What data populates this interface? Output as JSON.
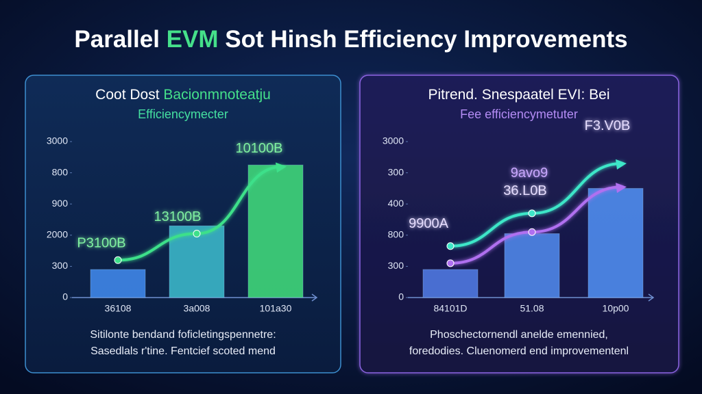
{
  "header": {
    "title_parts": [
      "Parallel ",
      "EVM",
      " Sot Hinsh Efficiency Improvements"
    ]
  },
  "chart_data": [
    {
      "type": "bar",
      "title": [
        "Coot Dost ",
        "Bacionmnoteatju"
      ],
      "subtitle": "Efficiencymecter",
      "categories": [
        "36108",
        "3a008",
        "101a30"
      ],
      "values": [
        0.9,
        2.3,
        4.25
      ],
      "colors": [
        "#3f86e8",
        "#3bb6c8",
        "#3fd67a"
      ],
      "series": [
        {
          "color": "#3ee08a",
          "values": [
            1.2,
            2.05,
            4.2
          ]
        }
      ],
      "annotations": [
        "P3100B",
        "13100B",
        "10100B"
      ],
      "ylim": [
        0,
        5
      ],
      "yticks": [
        0,
        {
          "value": 1,
          "label": "300"
        },
        {
          "value": 2,
          "label": "2000"
        },
        {
          "value": 3,
          "label": "900"
        },
        {
          "value": 4,
          "label": "800"
        },
        {
          "value": 5,
          "label": "3000"
        }
      ],
      "notes": [
        "Sitilonte bendand foficletingspennetre:",
        "Sasedlals r'tine. Fentcief scoted mend"
      ]
    },
    {
      "type": "bar",
      "title": [
        "Pitrend. Snespaatel EVI: Bei",
        ""
      ],
      "subtitle": "Fee efficiencymetuter",
      "categories": [
        "84101D",
        "51.08",
        "10p00"
      ],
      "values": [
        0.9,
        2.05,
        3.5
      ],
      "colors": [
        "#4f78e0",
        "#4f86e8",
        "#4f8cee"
      ],
      "series": [
        {
          "color": "#3ee6c8",
          "values": [
            1.65,
            2.7,
            4.3
          ]
        },
        {
          "color": "#b070f0",
          "values": [
            1.1,
            2.1,
            3.55
          ]
        }
      ],
      "annotations": [
        "9900A",
        "36.L0B",
        "9avo9",
        "F3.V0B"
      ],
      "ylim": [
        0,
        5
      ],
      "yticks": [
        0,
        {
          "value": 1,
          "label": "300"
        },
        {
          "value": 2,
          "label": "800"
        },
        {
          "value": 3,
          "label": "400"
        },
        {
          "value": 4,
          "label": "300"
        },
        {
          "value": 5,
          "label": "3000"
        }
      ],
      "notes": [
        "Phoschectornendl anelde emennied,",
        "foredodies. Cluenomerd end improvementenl"
      ]
    }
  ]
}
